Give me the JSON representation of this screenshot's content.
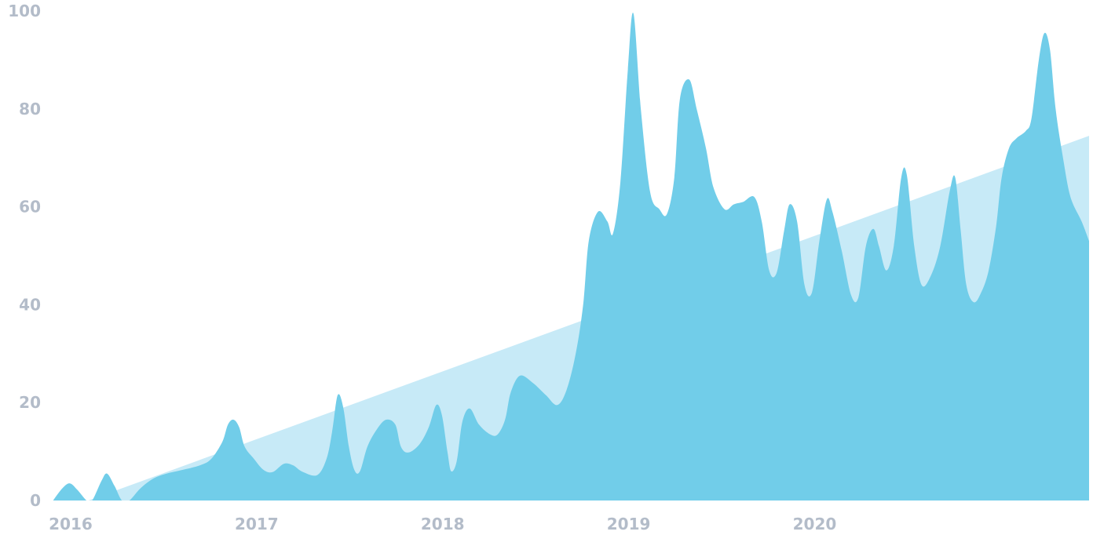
{
  "chart_data": {
    "type": "area",
    "title": "",
    "xlabel": "",
    "ylabel": "",
    "ylim": [
      0,
      100
    ],
    "yticks": [
      0,
      20,
      40,
      60,
      80,
      100
    ],
    "xticks": [
      "2016",
      "2017",
      "2018",
      "2019",
      "2020"
    ],
    "grid": false,
    "legend": "none",
    "series": [
      {
        "type": "area",
        "color": "#71CDE9",
        "points": [
          [
            2015.99,
            0
          ],
          [
            2016.04,
            2.5
          ],
          [
            2016.08,
            3.5
          ],
          [
            2016.12,
            2.2
          ],
          [
            2016.17,
            0
          ],
          [
            2016.2,
            0
          ],
          [
            2016.25,
            4
          ],
          [
            2016.28,
            5.5
          ],
          [
            2016.32,
            3
          ],
          [
            2016.36,
            0
          ],
          [
            2016.4,
            0
          ],
          [
            2016.46,
            2.5
          ],
          [
            2016.53,
            4.5
          ],
          [
            2016.6,
            5.5
          ],
          [
            2016.68,
            6.2
          ],
          [
            2016.78,
            7.2
          ],
          [
            2016.84,
            8.5
          ],
          [
            2016.9,
            12
          ],
          [
            2016.93,
            15.5
          ],
          [
            2016.96,
            16.5
          ],
          [
            2016.99,
            15
          ],
          [
            2017.02,
            11
          ],
          [
            2017.07,
            8.5
          ],
          [
            2017.12,
            6.3
          ],
          [
            2017.17,
            5.8
          ],
          [
            2017.23,
            7.5
          ],
          [
            2017.28,
            7.2
          ],
          [
            2017.33,
            5.9
          ],
          [
            2017.41,
            5.2
          ],
          [
            2017.46,
            8.5
          ],
          [
            2017.49,
            14
          ],
          [
            2017.52,
            21.5
          ],
          [
            2017.55,
            19
          ],
          [
            2017.58,
            11
          ],
          [
            2017.61,
            6.2
          ],
          [
            2017.64,
            6
          ],
          [
            2017.68,
            11
          ],
          [
            2017.73,
            14.5
          ],
          [
            2017.78,
            16.5
          ],
          [
            2017.83,
            15.5
          ],
          [
            2017.86,
            11
          ],
          [
            2017.9,
            9.8
          ],
          [
            2017.96,
            11.5
          ],
          [
            2018.01,
            15
          ],
          [
            2018.05,
            19.5
          ],
          [
            2018.08,
            17.5
          ],
          [
            2018.11,
            10
          ],
          [
            2018.13,
            6
          ],
          [
            2018.16,
            8
          ],
          [
            2018.19,
            16
          ],
          [
            2018.23,
            18.8
          ],
          [
            2018.28,
            15.5
          ],
          [
            2018.34,
            13.5
          ],
          [
            2018.38,
            13.5
          ],
          [
            2018.42,
            16.5
          ],
          [
            2018.45,
            22
          ],
          [
            2018.5,
            25.5
          ],
          [
            2018.57,
            24
          ],
          [
            2018.64,
            21.5
          ],
          [
            2018.7,
            19.5
          ],
          [
            2018.75,
            22.5
          ],
          [
            2018.8,
            30
          ],
          [
            2018.84,
            40
          ],
          [
            2018.87,
            53
          ],
          [
            2018.92,
            59
          ],
          [
            2018.97,
            57
          ],
          [
            2019.0,
            54.5
          ],
          [
            2019.04,
            65
          ],
          [
            2019.08,
            88
          ],
          [
            2019.11,
            99.5
          ],
          [
            2019.15,
            80
          ],
          [
            2019.2,
            63
          ],
          [
            2019.25,
            59.5
          ],
          [
            2019.29,
            58.5
          ],
          [
            2019.33,
            66
          ],
          [
            2019.36,
            82
          ],
          [
            2019.41,
            86
          ],
          [
            2019.45,
            80
          ],
          [
            2019.5,
            72
          ],
          [
            2019.54,
            64
          ],
          [
            2019.6,
            59.5
          ],
          [
            2019.65,
            60.5
          ],
          [
            2019.7,
            61
          ],
          [
            2019.76,
            62
          ],
          [
            2019.8,
            57
          ],
          [
            2019.84,
            47
          ],
          [
            2019.88,
            46.5
          ],
          [
            2019.92,
            55
          ],
          [
            2019.95,
            60.5
          ],
          [
            2019.99,
            57
          ],
          [
            2020.03,
            44
          ],
          [
            2020.07,
            42.5
          ],
          [
            2020.11,
            53
          ],
          [
            2020.15,
            61.5
          ],
          [
            2020.18,
            59
          ],
          [
            2020.23,
            51
          ],
          [
            2020.28,
            42
          ],
          [
            2020.32,
            41.5
          ],
          [
            2020.36,
            52
          ],
          [
            2020.4,
            55.5
          ],
          [
            2020.43,
            52
          ],
          [
            2020.47,
            47
          ],
          [
            2020.51,
            52
          ],
          [
            2020.55,
            66
          ],
          [
            2020.58,
            66.5
          ],
          [
            2020.62,
            52
          ],
          [
            2020.66,
            44
          ],
          [
            2020.71,
            46
          ],
          [
            2020.76,
            52
          ],
          [
            2020.81,
            63
          ],
          [
            2020.84,
            66
          ],
          [
            2020.87,
            55
          ],
          [
            2020.9,
            44
          ],
          [
            2020.94,
            40.5
          ],
          [
            2020.98,
            42.5
          ],
          [
            2021.02,
            47
          ],
          [
            2021.06,
            56
          ],
          [
            2021.09,
            66
          ],
          [
            2021.13,
            72
          ],
          [
            2021.17,
            74
          ],
          [
            2021.22,
            75.5
          ],
          [
            2021.25,
            78
          ],
          [
            2021.29,
            90
          ],
          [
            2021.32,
            95.5
          ],
          [
            2021.35,
            92
          ],
          [
            2021.38,
            80
          ],
          [
            2021.42,
            70
          ],
          [
            2021.46,
            62
          ],
          [
            2021.52,
            57
          ],
          [
            2021.56,
            53
          ]
        ]
      },
      {
        "type": "area",
        "color": "#C7EAF7",
        "points": [
          [
            2016.18,
            0
          ],
          [
            2021.56,
            74.5
          ]
        ]
      }
    ]
  },
  "colors": {
    "axis_label": "#B3BCC9",
    "background": "#FFFFFF"
  }
}
